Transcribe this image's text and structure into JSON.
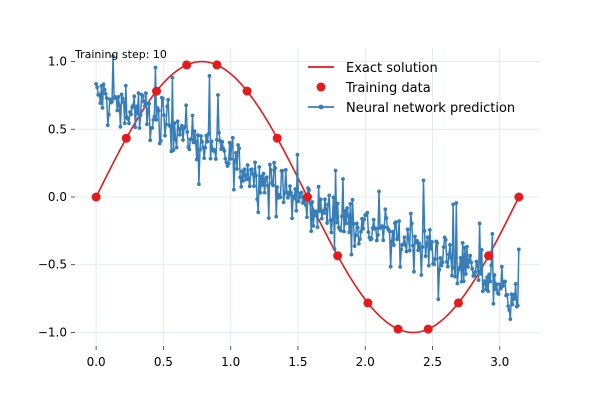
{
  "chart_data": {
    "type": "line",
    "annotation": "Training step: 10",
    "xlim": [
      -0.157,
      3.299
    ],
    "ylim": [
      -1.1,
      1.1
    ],
    "grid": true,
    "legend_placement": "top-right",
    "x_ticks": [
      0.0,
      0.5,
      1.0,
      1.5,
      2.0,
      2.5,
      3.0
    ],
    "x_tick_labels": [
      "0.0",
      "0.5",
      "1.0",
      "1.5",
      "2.0",
      "2.5",
      "3.0"
    ],
    "y_ticks": [
      1.0,
      0.5,
      0.0,
      -0.5,
      -1.0
    ],
    "y_tick_labels": [
      "1.0",
      "0.5",
      "0.0",
      "−0.5",
      "−1.0"
    ],
    "series": [
      {
        "name": "Exact solution",
        "kind": "line",
        "color": "#e41a1c",
        "function": "sin(2x)",
        "x_range": [
          0,
          3.1416
        ]
      },
      {
        "name": "Training data",
        "kind": "scatter",
        "color": "#e41a1c",
        "x": [
          0.0,
          0.224,
          0.449,
          0.673,
          0.898,
          1.122,
          1.346,
          1.571,
          1.795,
          2.02,
          2.244,
          2.468,
          2.693,
          2.917,
          3.142
        ],
        "y": [
          0.0,
          0.434,
          0.782,
          0.975,
          0.975,
          0.782,
          0.434,
          0.0,
          -0.434,
          -0.782,
          -0.975,
          -0.975,
          -0.782,
          -0.434,
          0.0
        ]
      },
      {
        "name": "Neural network prediction",
        "kind": "line-marker",
        "color": "#377eb8",
        "points": 400,
        "x_range": [
          0,
          3.1416
        ],
        "y_start": 0.75,
        "y_end": -0.75,
        "noise": 0.12
      }
    ]
  }
}
